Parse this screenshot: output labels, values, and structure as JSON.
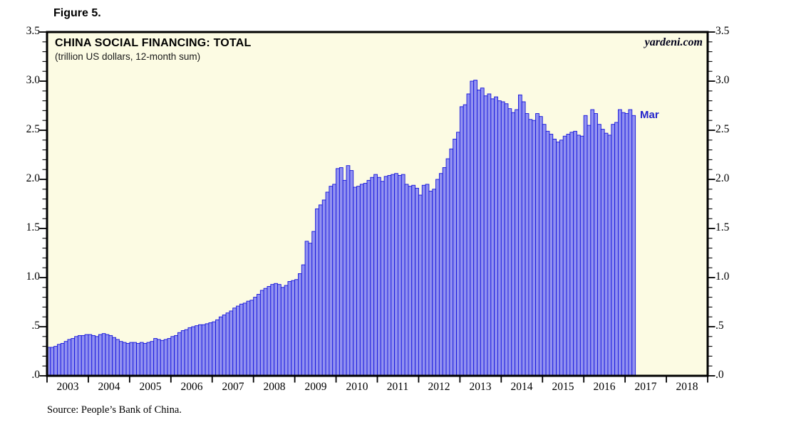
{
  "figure_label": "Figure 5.",
  "chart": {
    "title": "CHINA SOCIAL FINANCING: TOTAL",
    "subtitle": "(trillion US dollars, 12-month sum)",
    "brand": "yardeni.com",
    "last_point_label": "Mar",
    "source": "Source: People’s Bank of China.",
    "colors": {
      "plot_background": "#FCFBE3",
      "bar_fill": "#9292F0",
      "bar_border": "#1414DC",
      "frame": "#000000",
      "last_point_label_color": "#2323CC"
    }
  },
  "chart_data": {
    "type": "bar",
    "title": "CHINA SOCIAL FINANCING: TOTAL",
    "subtitle": "(trillion US dollars, 12-month sum)",
    "ylabel": "trillion US dollars, 12-month sum",
    "ylim": [
      0,
      3.5
    ],
    "grid": false,
    "y_tick_labels": [
      "3.5",
      "3.0",
      "2.5",
      "2.0",
      "1.5",
      "1.0",
      ".5",
      ".0"
    ],
    "y_minor_tick_step": 0.1,
    "x_year_labels": [
      "2003",
      "2004",
      "2005",
      "2006",
      "2007",
      "2008",
      "2009",
      "2010",
      "2011",
      "2012",
      "2013",
      "2014",
      "2015",
      "2016",
      "2017",
      "2018"
    ],
    "x_start": "2003-01",
    "x_end": "2017-03",
    "last_point": {
      "label": "Mar",
      "value": 2.65
    },
    "series": [
      {
        "name": "China social financing, total, 12-month sum (trillion US dollars)",
        "frequency": "monthly",
        "values": [
          0.29,
          0.29,
          0.3,
          0.32,
          0.33,
          0.35,
          0.37,
          0.38,
          0.4,
          0.41,
          0.41,
          0.42,
          0.42,
          0.41,
          0.4,
          0.42,
          0.43,
          0.42,
          0.41,
          0.39,
          0.37,
          0.35,
          0.34,
          0.33,
          0.34,
          0.34,
          0.33,
          0.34,
          0.33,
          0.34,
          0.35,
          0.38,
          0.37,
          0.36,
          0.37,
          0.38,
          0.4,
          0.41,
          0.44,
          0.46,
          0.47,
          0.49,
          0.5,
          0.51,
          0.52,
          0.52,
          0.53,
          0.54,
          0.55,
          0.57,
          0.6,
          0.62,
          0.64,
          0.66,
          0.69,
          0.71,
          0.73,
          0.74,
          0.76,
          0.77,
          0.8,
          0.83,
          0.87,
          0.89,
          0.91,
          0.93,
          0.94,
          0.93,
          0.9,
          0.92,
          0.96,
          0.97,
          0.98,
          1.04,
          1.13,
          1.37,
          1.35,
          1.47,
          1.7,
          1.74,
          1.79,
          1.87,
          1.93,
          1.95,
          2.11,
          2.12,
          1.99,
          2.14,
          2.09,
          1.92,
          1.93,
          1.95,
          1.96,
          1.99,
          2.02,
          2.05,
          2.02,
          1.98,
          2.03,
          2.04,
          2.05,
          2.06,
          2.04,
          2.05,
          1.95,
          1.93,
          1.94,
          1.91,
          1.84,
          1.94,
          1.95,
          1.88,
          1.9,
          2.0,
          2.06,
          2.12,
          2.21,
          2.31,
          2.41,
          2.48,
          2.74,
          2.76,
          2.87,
          3.0,
          3.01,
          2.91,
          2.93,
          2.85,
          2.87,
          2.82,
          2.84,
          2.8,
          2.79,
          2.77,
          2.72,
          2.68,
          2.71,
          2.86,
          2.79,
          2.67,
          2.61,
          2.6,
          2.67,
          2.64,
          2.56,
          2.49,
          2.46,
          2.41,
          2.38,
          2.4,
          2.44,
          2.46,
          2.48,
          2.49,
          2.45,
          2.44,
          2.65,
          2.55,
          2.71,
          2.67,
          2.56,
          2.51,
          2.47,
          2.45,
          2.56,
          2.58,
          2.71,
          2.68,
          2.67,
          2.71,
          2.65
        ]
      }
    ]
  }
}
